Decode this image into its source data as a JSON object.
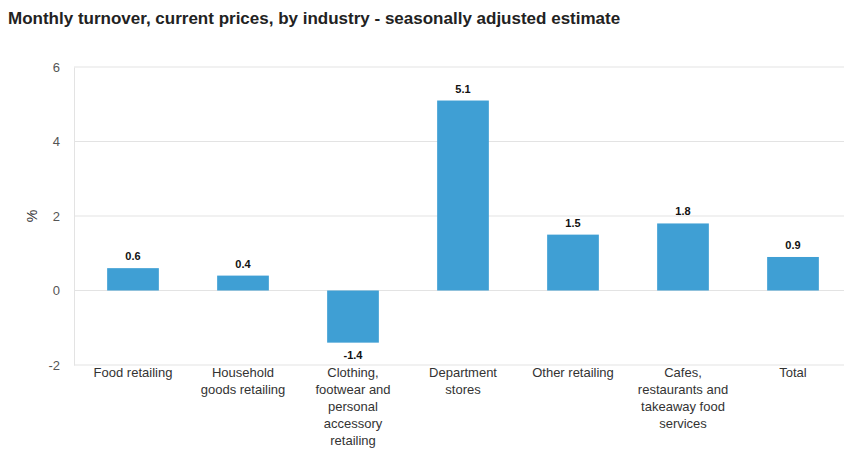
{
  "chart_data": {
    "type": "bar",
    "title": "Monthly turnover, current prices, by industry - seasonally adjusted estimate",
    "ylabel": "%",
    "categories": [
      "Food retailing",
      "Household goods retailing",
      "Clothing, footwear and personal accessory retailing",
      "Department stores",
      "Other retailing",
      "Cafes, restaurants and takeaway food services",
      "Total"
    ],
    "values": [
      0.6,
      0.4,
      -1.4,
      5.1,
      1.5,
      1.8,
      0.9
    ],
    "color": "#3f9fd4",
    "ylim": [
      -2,
      6
    ],
    "yticks": [
      -2,
      0,
      2,
      4,
      6
    ],
    "grid": true,
    "data_labels": true
  }
}
